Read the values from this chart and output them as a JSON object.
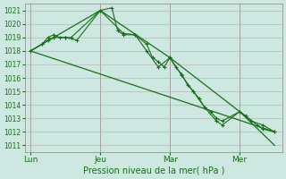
{
  "background_color": "#cce8e0",
  "grid_color": "#b0b0b0",
  "line_color": "#1a6e1a",
  "xlabel": "Pression niveau de la mer( hPa )",
  "ylim": [
    1010.5,
    1021.5
  ],
  "yticks": [
    1011,
    1012,
    1013,
    1014,
    1015,
    1016,
    1017,
    1018,
    1019,
    1020,
    1021
  ],
  "xtick_labels": [
    "Lun",
    "Jeu",
    "Mar",
    "Mer"
  ],
  "xtick_positions": [
    0,
    36,
    72,
    108
  ],
  "vlines": [
    0,
    36,
    72,
    108
  ],
  "xlim": [
    -3,
    130
  ],
  "series1_x": [
    0,
    6,
    9,
    12,
    15,
    18,
    21,
    36,
    42,
    45,
    48,
    54,
    60,
    63,
    66,
    69,
    72,
    75,
    78,
    81,
    84,
    87,
    90,
    93,
    96,
    99,
    108,
    111,
    117,
    120,
    126
  ],
  "series1_y": [
    1018.0,
    1018.5,
    1019.0,
    1019.2,
    1019.0,
    1019.0,
    1019.0,
    1021.0,
    1021.2,
    1019.5,
    1019.2,
    1019.2,
    1018.5,
    1017.5,
    1017.2,
    1016.8,
    1017.5,
    1016.8,
    1016.3,
    1015.5,
    1015.0,
    1014.5,
    1013.8,
    1013.5,
    1013.0,
    1012.8,
    1013.5,
    1013.2,
    1012.5,
    1012.2,
    1012.0
  ],
  "series2_x": [
    0,
    6,
    9,
    12,
    18,
    24,
    36,
    48,
    54,
    60,
    66,
    72,
    78,
    84,
    90,
    96,
    99,
    108,
    114,
    120,
    126
  ],
  "series2_y": [
    1018.0,
    1018.5,
    1018.8,
    1019.0,
    1019.0,
    1018.8,
    1021.0,
    1019.3,
    1019.2,
    1018.0,
    1016.8,
    1017.5,
    1016.2,
    1015.0,
    1013.8,
    1012.8,
    1012.5,
    1013.5,
    1012.8,
    1012.5,
    1012.0
  ],
  "trend_x": [
    0,
    36,
    72,
    108,
    126
  ],
  "trend_y": [
    1018.0,
    1021.0,
    1017.5,
    1013.5,
    1011.0
  ],
  "long_trend_x": [
    0,
    126
  ],
  "long_trend_y": [
    1018.0,
    1012.0
  ]
}
